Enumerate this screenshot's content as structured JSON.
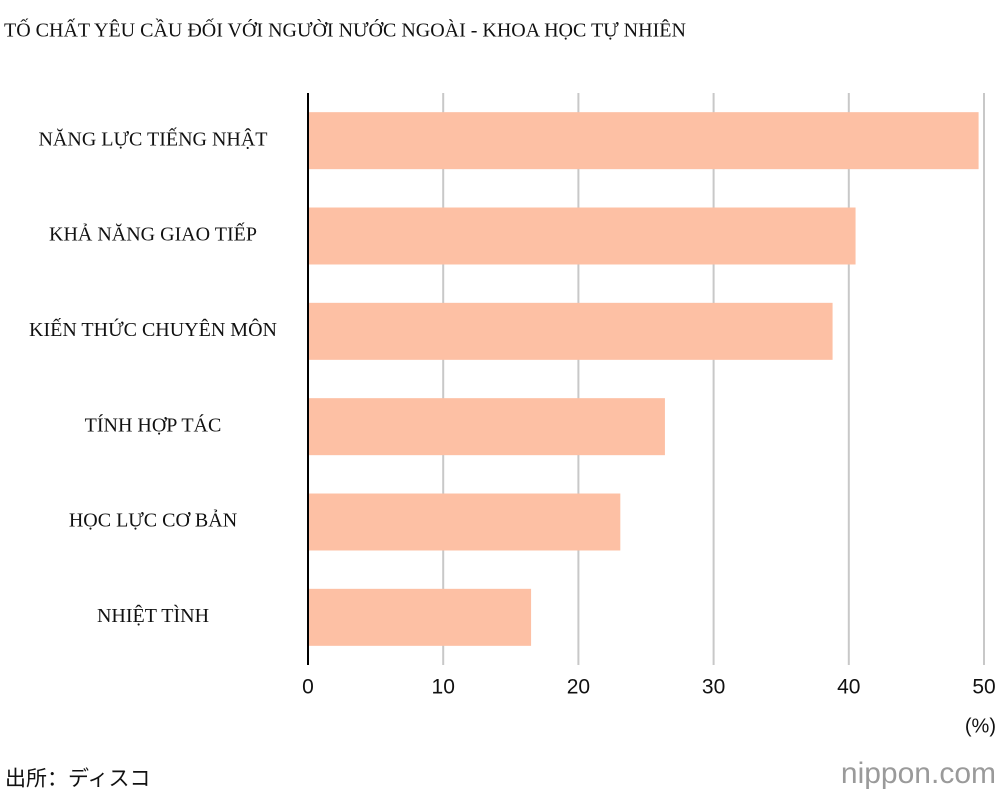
{
  "chart_data": {
    "type": "bar",
    "orientation": "horizontal",
    "title": "TỐ CHẤT YÊU CẦU ĐỐI VỚI NGƯỜI NƯỚC NGOÀI - KHOA HỌC TỰ NHIÊN",
    "categories": [
      "NĂNG LỰC TIẾNG NHẬT",
      "KHẢ NĂNG GIAO TIẾP",
      "KIẾN THỨC CHUYÊN MÔN",
      "TÍNH HỢP TÁC",
      "HỌC LỰC CƠ BẢN",
      "NHIỆT TÌNH"
    ],
    "values": [
      49.6,
      40.5,
      38.8,
      26.4,
      23.1,
      16.5
    ],
    "color": "#fdc0a4",
    "xlim": [
      0,
      50
    ],
    "xticks": [
      0,
      10,
      20,
      30,
      40,
      50
    ],
    "grid": true,
    "unit_label": "(%)",
    "source": "出所：ディスコ",
    "brand": "nippon.com"
  }
}
